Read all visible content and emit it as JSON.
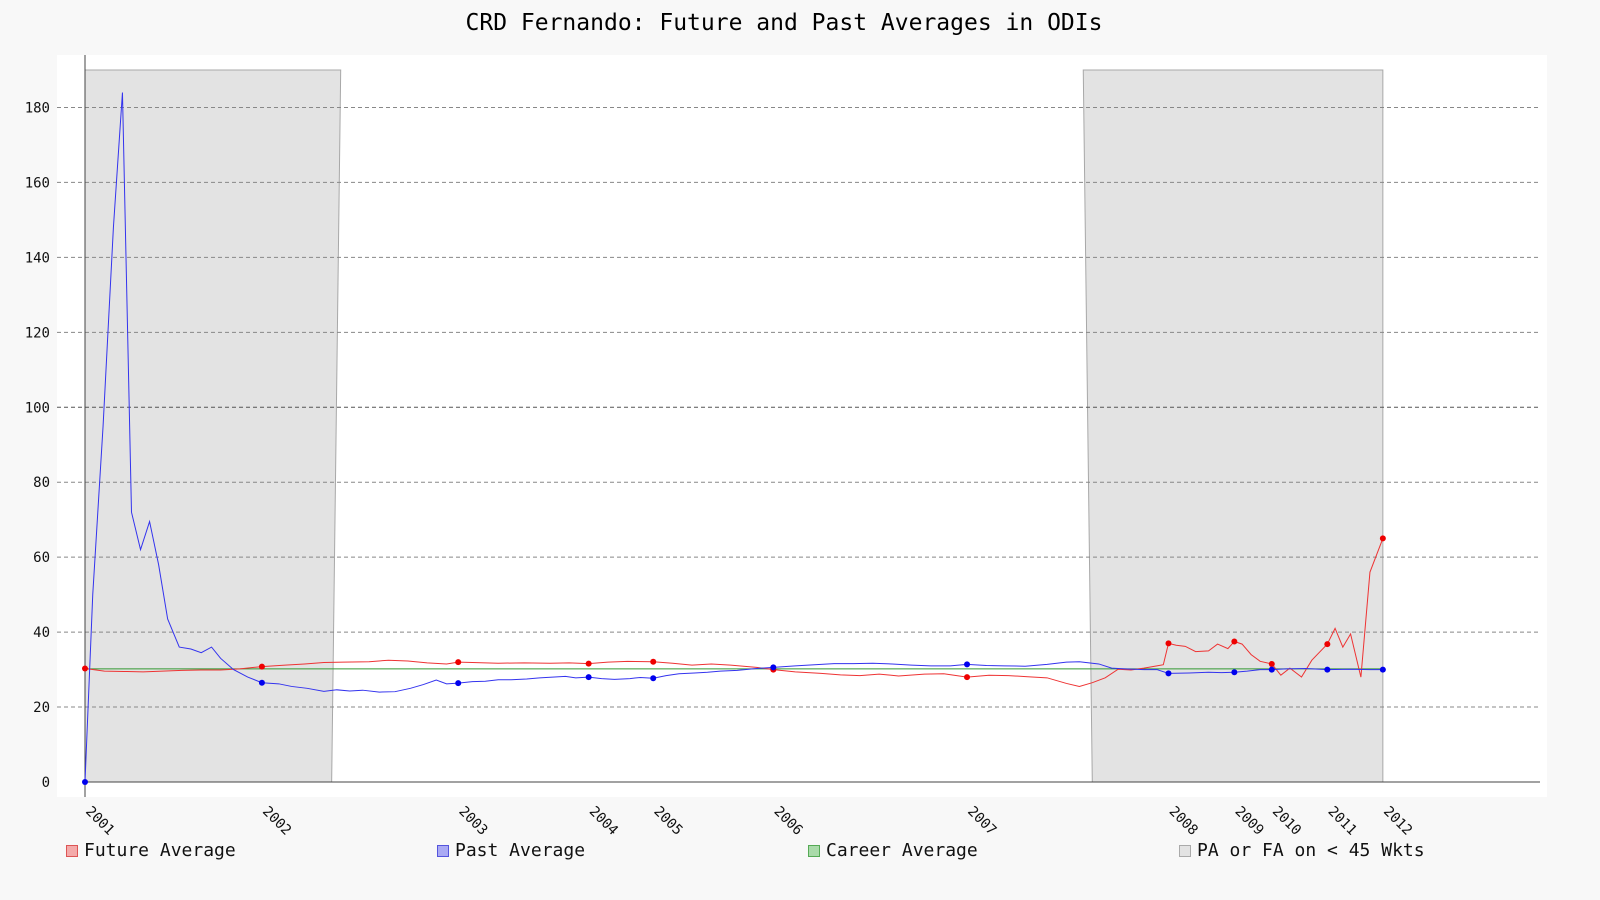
{
  "chart_data": {
    "type": "line",
    "title": "CRD Fernando: Future and Past Averages in ODIs",
    "xlabel": "",
    "ylabel": "",
    "ylim": [
      0,
      190
    ],
    "xlim": [
      2001.0,
      2012.05
    ],
    "yticks": [
      0,
      20,
      40,
      60,
      80,
      100,
      120,
      140,
      160,
      180
    ],
    "xticks": [
      {
        "label": "2001",
        "x": 2001.0
      },
      {
        "label": "2002",
        "x": 2002.37
      },
      {
        "label": "2003",
        "x": 2003.89
      },
      {
        "label": "2004",
        "x": 2004.9
      },
      {
        "label": "2005",
        "x": 2005.4
      },
      {
        "label": "2006",
        "x": 2006.33
      },
      {
        "label": "2007",
        "x": 2007.83
      },
      {
        "label": "2008",
        "x": 2009.39
      },
      {
        "label": "2009",
        "x": 2009.9
      },
      {
        "label": "2010",
        "x": 2010.19
      },
      {
        "label": "2011",
        "x": 2010.62
      },
      {
        "label": "2012",
        "x": 2011.05
      }
    ],
    "grid": true,
    "legend_position": "bottom",
    "shaded_band": {
      "name": "PA or FA on < 45 Wkts",
      "color": "#e3e3e3",
      "points": [
        [
          2001.0,
          190
        ],
        [
          2002.98,
          190
        ],
        [
          2002.91,
          0
        ],
        [
          2008.8,
          0
        ],
        [
          2008.73,
          190
        ],
        [
          2011.05,
          190
        ],
        [
          2011.05,
          0
        ]
      ]
    },
    "series": [
      {
        "name": "Future Average",
        "color": "#ee3333",
        "markers": [
          [
            2001.0,
            30.3
          ],
          [
            2002.37,
            30.8
          ],
          [
            2003.89,
            32.0
          ],
          [
            2004.9,
            31.6
          ],
          [
            2005.4,
            32.1
          ],
          [
            2006.33,
            30.0
          ],
          [
            2007.83,
            28.0
          ],
          [
            2009.39,
            37.0
          ],
          [
            2009.9,
            37.5
          ],
          [
            2010.19,
            31.5
          ],
          [
            2010.62,
            36.8
          ],
          [
            2011.05,
            65.0
          ]
        ],
        "values": [
          [
            2001.0,
            30.3
          ],
          [
            2001.15,
            29.6
          ],
          [
            2001.3,
            29.5
          ],
          [
            2001.45,
            29.4
          ],
          [
            2001.6,
            29.6
          ],
          [
            2001.75,
            29.8
          ],
          [
            2001.9,
            29.9
          ],
          [
            2002.05,
            29.9
          ],
          [
            2002.2,
            30.2
          ],
          [
            2002.37,
            30.8
          ],
          [
            2002.55,
            31.2
          ],
          [
            2002.7,
            31.5
          ],
          [
            2002.85,
            31.9
          ],
          [
            2003.0,
            32.0
          ],
          [
            2003.2,
            32.1
          ],
          [
            2003.35,
            32.5
          ],
          [
            2003.5,
            32.3
          ],
          [
            2003.65,
            31.8
          ],
          [
            2003.8,
            31.5
          ],
          [
            2003.89,
            32.0
          ],
          [
            2004.0,
            31.9
          ],
          [
            2004.2,
            31.7
          ],
          [
            2004.4,
            31.8
          ],
          [
            2004.6,
            31.7
          ],
          [
            2004.75,
            31.8
          ],
          [
            2004.9,
            31.6
          ],
          [
            2005.05,
            32.0
          ],
          [
            2005.2,
            32.2
          ],
          [
            2005.4,
            32.1
          ],
          [
            2005.55,
            31.7
          ],
          [
            2005.7,
            31.2
          ],
          [
            2005.85,
            31.5
          ],
          [
            2006.0,
            31.2
          ],
          [
            2006.2,
            30.6
          ],
          [
            2006.33,
            30.0
          ],
          [
            2006.5,
            29.4
          ],
          [
            2006.7,
            29.0
          ],
          [
            2006.85,
            28.6
          ],
          [
            2007.0,
            28.4
          ],
          [
            2007.15,
            28.8
          ],
          [
            2007.3,
            28.3
          ],
          [
            2007.5,
            28.8
          ],
          [
            2007.65,
            28.9
          ],
          [
            2007.83,
            28.0
          ],
          [
            2008.0,
            28.5
          ],
          [
            2008.15,
            28.4
          ],
          [
            2008.3,
            28.1
          ],
          [
            2008.45,
            27.8
          ],
          [
            2008.6,
            26.3
          ],
          [
            2008.7,
            25.5
          ],
          [
            2008.8,
            26.5
          ],
          [
            2008.9,
            27.8
          ],
          [
            2009.0,
            30.1
          ],
          [
            2009.1,
            29.9
          ],
          [
            2009.2,
            30.4
          ],
          [
            2009.3,
            31.0
          ],
          [
            2009.35,
            31.3
          ],
          [
            2009.39,
            37.0
          ],
          [
            2009.45,
            36.5
          ],
          [
            2009.52,
            36.2
          ],
          [
            2009.6,
            34.8
          ],
          [
            2009.7,
            35.0
          ],
          [
            2009.77,
            36.8
          ],
          [
            2009.85,
            35.6
          ],
          [
            2009.9,
            37.5
          ],
          [
            2009.96,
            36.8
          ],
          [
            2010.03,
            34.0
          ],
          [
            2010.1,
            32.2
          ],
          [
            2010.19,
            31.5
          ],
          [
            2010.26,
            28.5
          ],
          [
            2010.33,
            30.4
          ],
          [
            2010.42,
            28.0
          ],
          [
            2010.5,
            32.5
          ],
          [
            2010.62,
            36.8
          ],
          [
            2010.68,
            41.0
          ],
          [
            2010.74,
            36.0
          ],
          [
            2010.8,
            39.5
          ],
          [
            2010.88,
            28.0
          ],
          [
            2010.95,
            56.0
          ],
          [
            2011.05,
            65.0
          ]
        ]
      },
      {
        "name": "Past Average",
        "color": "#3333ee",
        "markers": [
          [
            2001.0,
            0
          ],
          [
            2002.37,
            26.5
          ],
          [
            2003.89,
            26.4
          ],
          [
            2004.9,
            28.0
          ],
          [
            2005.4,
            27.7
          ],
          [
            2006.33,
            30.6
          ],
          [
            2007.83,
            31.4
          ],
          [
            2009.39,
            29.0
          ],
          [
            2009.9,
            29.3
          ],
          [
            2010.19,
            30.0
          ],
          [
            2010.62,
            30.0
          ],
          [
            2011.05,
            30.0
          ]
        ],
        "values": [
          [
            2001.0,
            0
          ],
          [
            2001.06,
            50.0
          ],
          [
            2001.14,
            95.0
          ],
          [
            2001.22,
            148.0
          ],
          [
            2001.29,
            184.0
          ],
          [
            2001.36,
            72.0
          ],
          [
            2001.43,
            62.0
          ],
          [
            2001.5,
            69.5
          ],
          [
            2001.57,
            58.0
          ],
          [
            2001.64,
            43.5
          ],
          [
            2001.73,
            36.0
          ],
          [
            2001.82,
            35.5
          ],
          [
            2001.9,
            34.5
          ],
          [
            2001.98,
            36.0
          ],
          [
            2002.05,
            33.0
          ],
          [
            2002.15,
            30.0
          ],
          [
            2002.26,
            28.0
          ],
          [
            2002.37,
            26.5
          ],
          [
            2002.5,
            26.2
          ],
          [
            2002.6,
            25.5
          ],
          [
            2002.72,
            25.0
          ],
          [
            2002.85,
            24.2
          ],
          [
            2002.95,
            24.6
          ],
          [
            2003.05,
            24.3
          ],
          [
            2003.15,
            24.5
          ],
          [
            2003.28,
            24.0
          ],
          [
            2003.4,
            24.1
          ],
          [
            2003.52,
            25.0
          ],
          [
            2003.62,
            26.0
          ],
          [
            2003.72,
            27.2
          ],
          [
            2003.8,
            26.2
          ],
          [
            2003.89,
            26.4
          ],
          [
            2004.0,
            26.8
          ],
          [
            2004.1,
            26.9
          ],
          [
            2004.2,
            27.3
          ],
          [
            2004.3,
            27.3
          ],
          [
            2004.42,
            27.5
          ],
          [
            2004.52,
            27.8
          ],
          [
            2004.62,
            28.0
          ],
          [
            2004.72,
            28.2
          ],
          [
            2004.8,
            27.8
          ],
          [
            2004.9,
            28.0
          ],
          [
            2005.0,
            27.6
          ],
          [
            2005.1,
            27.4
          ],
          [
            2005.22,
            27.6
          ],
          [
            2005.3,
            27.9
          ],
          [
            2005.4,
            27.7
          ],
          [
            2005.5,
            28.4
          ],
          [
            2005.6,
            28.9
          ],
          [
            2005.72,
            29.1
          ],
          [
            2005.82,
            29.3
          ],
          [
            2005.92,
            29.6
          ],
          [
            2006.05,
            29.8
          ],
          [
            2006.2,
            30.3
          ],
          [
            2006.33,
            30.6
          ],
          [
            2006.5,
            31.0
          ],
          [
            2006.65,
            31.3
          ],
          [
            2006.8,
            31.6
          ],
          [
            2006.95,
            31.6
          ],
          [
            2007.1,
            31.7
          ],
          [
            2007.25,
            31.5
          ],
          [
            2007.4,
            31.2
          ],
          [
            2007.55,
            31.0
          ],
          [
            2007.7,
            31.0
          ],
          [
            2007.83,
            31.4
          ],
          [
            2007.98,
            31.1
          ],
          [
            2008.12,
            31.0
          ],
          [
            2008.28,
            30.9
          ],
          [
            2008.45,
            31.4
          ],
          [
            2008.6,
            32.0
          ],
          [
            2008.7,
            32.1
          ],
          [
            2008.85,
            31.5
          ],
          [
            2008.95,
            30.4
          ],
          [
            2009.05,
            30.2
          ],
          [
            2009.2,
            30.0
          ],
          [
            2009.3,
            30.0
          ],
          [
            2009.39,
            29.0
          ],
          [
            2009.55,
            29.1
          ],
          [
            2009.7,
            29.3
          ],
          [
            2009.8,
            29.2
          ],
          [
            2009.9,
            29.3
          ],
          [
            2010.0,
            29.6
          ],
          [
            2010.1,
            30.0
          ],
          [
            2010.19,
            30.0
          ],
          [
            2010.3,
            30.2
          ],
          [
            2010.45,
            30.3
          ],
          [
            2010.62,
            30.0
          ],
          [
            2010.8,
            30.1
          ],
          [
            2010.95,
            30.0
          ],
          [
            2011.05,
            30.0
          ]
        ]
      },
      {
        "name": "Career Average",
        "color": "#339933",
        "values": [
          [
            2001.0,
            30.2
          ],
          [
            2011.05,
            30.2
          ]
        ]
      }
    ],
    "legend": [
      {
        "label": "Future Average",
        "fill": "#f4aaaa",
        "stroke": "#dd5555"
      },
      {
        "label": "Past Average",
        "fill": "#aaaaf4",
        "stroke": "#5555dd"
      },
      {
        "label": "Career Average",
        "fill": "#aadbaa",
        "stroke": "#55aa55"
      },
      {
        "label": "PA or FA on < 45 Wkts",
        "fill": "#e3e3e3",
        "stroke": "#aaaaaa"
      }
    ]
  }
}
